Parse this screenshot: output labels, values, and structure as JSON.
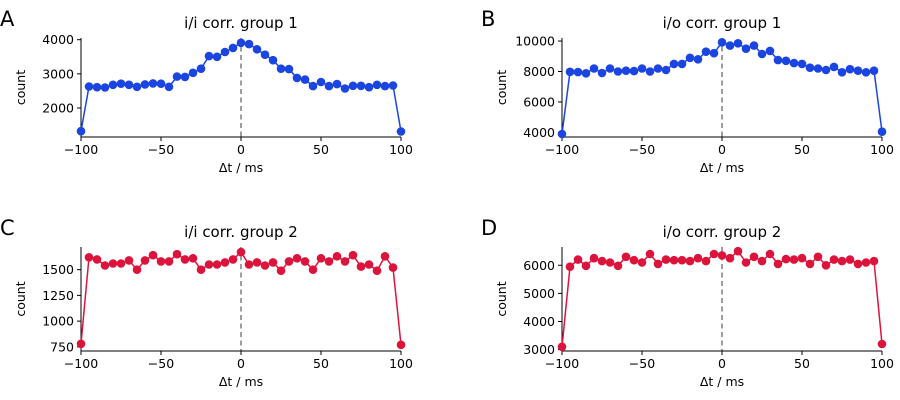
{
  "chart_data": [
    {
      "type": "line",
      "panel": "A",
      "title": "i/i corr. group 1",
      "xlabel": "Δt / ms",
      "ylabel": "count",
      "xlim": [
        -100,
        100
      ],
      "ylim": [
        1150,
        4050
      ],
      "xticks": [
        -100,
        -50,
        0,
        50,
        100
      ],
      "yticks": [
        2000,
        3000,
        4000
      ],
      "color": "#1a45e0",
      "zero_line": true,
      "x": [
        -100,
        -95,
        -90,
        -85,
        -80,
        -75,
        -70,
        -65,
        -60,
        -55,
        -50,
        -45,
        -40,
        -35,
        -30,
        -25,
        -20,
        -15,
        -10,
        -5,
        0,
        5,
        10,
        15,
        20,
        25,
        30,
        35,
        40,
        45,
        50,
        55,
        60,
        65,
        70,
        75,
        80,
        85,
        90,
        95,
        100
      ],
      "values": [
        1320,
        2630,
        2610,
        2600,
        2680,
        2710,
        2680,
        2620,
        2690,
        2720,
        2710,
        2620,
        2920,
        2910,
        3030,
        3150,
        3520,
        3500,
        3640,
        3760,
        3910,
        3870,
        3720,
        3560,
        3400,
        3150,
        3140,
        2880,
        2830,
        2640,
        2760,
        2640,
        2700,
        2570,
        2650,
        2650,
        2610,
        2680,
        2640,
        2660,
        1310
      ]
    },
    {
      "type": "line",
      "panel": "B",
      "title": "i/o corr. group 1",
      "xlabel": "Δt / ms",
      "ylabel": "count",
      "xlim": [
        -100,
        100
      ],
      "ylim": [
        3700,
        10200
      ],
      "xticks": [
        -100,
        -50,
        0,
        50,
        100
      ],
      "yticks": [
        4000,
        6000,
        8000,
        10000
      ],
      "color": "#1a45e0",
      "zero_line": true,
      "x": [
        -100,
        -95,
        -90,
        -85,
        -80,
        -75,
        -70,
        -65,
        -60,
        -55,
        -50,
        -45,
        -40,
        -35,
        -30,
        -25,
        -20,
        -15,
        -10,
        -5,
        0,
        5,
        10,
        15,
        20,
        25,
        30,
        35,
        40,
        45,
        50,
        55,
        60,
        65,
        70,
        75,
        80,
        85,
        90,
        95,
        100
      ],
      "values": [
        3900,
        7980,
        7960,
        7880,
        8200,
        7900,
        8200,
        8000,
        8050,
        8030,
        8200,
        8000,
        8200,
        8100,
        8500,
        8500,
        8900,
        8800,
        9300,
        9200,
        9920,
        9700,
        9850,
        9500,
        9700,
        9150,
        9350,
        8750,
        8700,
        8550,
        8500,
        8250,
        8200,
        8100,
        8300,
        7950,
        8150,
        8050,
        7950,
        8050,
        4050
      ]
    },
    {
      "type": "line",
      "panel": "C",
      "title": "i/i corr. group 2",
      "xlabel": "Δt / ms",
      "ylabel": "count",
      "xlim": [
        -100,
        100
      ],
      "ylim": [
        710,
        1720
      ],
      "xticks": [
        -100,
        -50,
        0,
        50,
        100
      ],
      "yticks": [
        750,
        1000,
        1250,
        1500
      ],
      "color": "#dc143c",
      "zero_line": true,
      "x": [
        -100,
        -95,
        -90,
        -85,
        -80,
        -75,
        -70,
        -65,
        -60,
        -55,
        -50,
        -45,
        -40,
        -35,
        -30,
        -25,
        -20,
        -15,
        -10,
        -5,
        0,
        5,
        10,
        15,
        20,
        25,
        30,
        35,
        40,
        45,
        50,
        55,
        60,
        65,
        70,
        75,
        80,
        85,
        90,
        95,
        100
      ],
      "values": [
        780,
        1620,
        1600,
        1540,
        1560,
        1560,
        1590,
        1500,
        1590,
        1640,
        1580,
        1580,
        1650,
        1600,
        1610,
        1500,
        1550,
        1550,
        1570,
        1600,
        1670,
        1550,
        1570,
        1540,
        1570,
        1490,
        1580,
        1610,
        1580,
        1500,
        1610,
        1580,
        1630,
        1580,
        1640,
        1530,
        1550,
        1490,
        1630,
        1520,
        770
      ]
    },
    {
      "type": "line",
      "panel": "D",
      "title": "i/o corr. group 2",
      "xlabel": "Δt / ms",
      "ylabel": "count",
      "xlim": [
        -100,
        100
      ],
      "ylim": [
        2950,
        6650
      ],
      "xticks": [
        -100,
        -50,
        0,
        50,
        100
      ],
      "yticks": [
        3000,
        4000,
        5000,
        6000
      ],
      "color": "#dc143c",
      "zero_line": true,
      "x": [
        -100,
        -95,
        -90,
        -85,
        -80,
        -75,
        -70,
        -65,
        -60,
        -55,
        -50,
        -45,
        -40,
        -35,
        -30,
        -25,
        -20,
        -15,
        -10,
        -5,
        0,
        5,
        10,
        15,
        20,
        25,
        30,
        35,
        40,
        45,
        50,
        55,
        60,
        65,
        70,
        75,
        80,
        85,
        90,
        95,
        100
      ],
      "values": [
        3100,
        5950,
        6200,
        5980,
        6250,
        6150,
        6100,
        5980,
        6300,
        6180,
        6100,
        6400,
        6050,
        6200,
        6180,
        6180,
        6150,
        6250,
        6150,
        6400,
        6350,
        6250,
        6500,
        6100,
        6300,
        6150,
        6400,
        6050,
        6220,
        6200,
        6250,
        6050,
        6300,
        6000,
        6200,
        6150,
        6200,
        6050,
        6100,
        6150,
        3200
      ]
    }
  ]
}
